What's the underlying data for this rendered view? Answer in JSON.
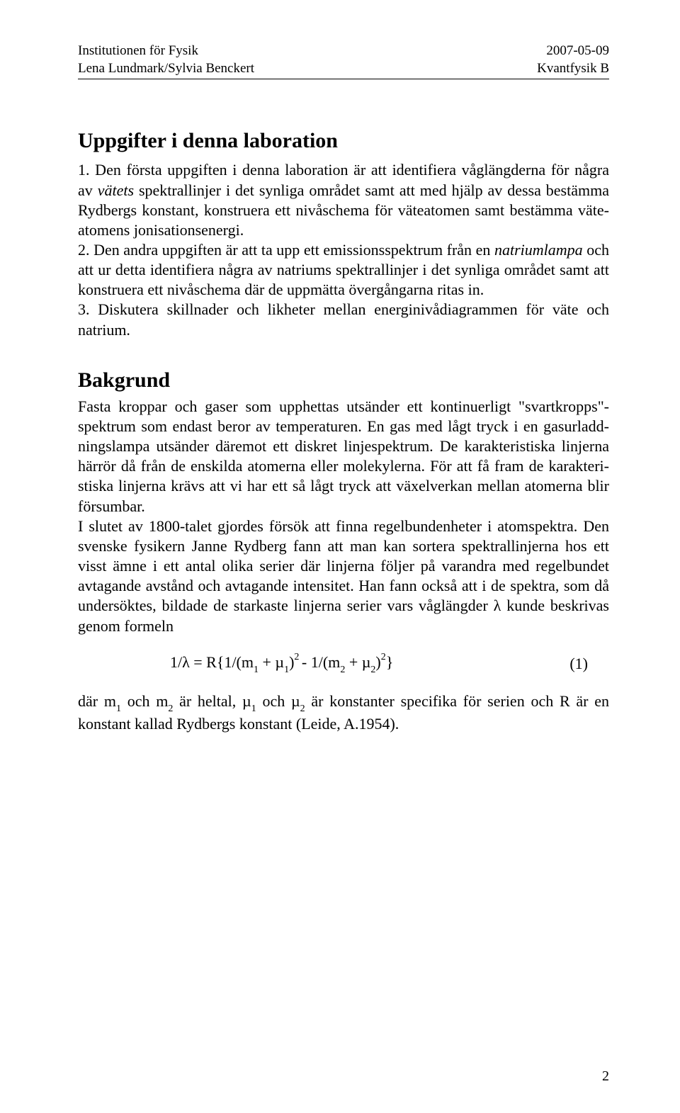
{
  "header": {
    "left_line1": "Institutionen för Fysik",
    "left_line2": "Lena Lundmark/Sylvia Benckert",
    "right_line1": "2007-05-09",
    "right_line2": "Kvantfysik B"
  },
  "section1": {
    "title": "Uppgifter i denna laboration",
    "p1_a": "1.       Den första uppgiften i denna laboration är att identifiera våglängderna för några av ",
    "p1_b": "vätets",
    "p1_c": " spektrallinjer i det synliga området samt att med hjälp av dessa bestämma Rydbergs konstant, konstruera ett nivåschema för väteatomen samt bestämma väte-atomens jonisationsenergi.",
    "p2_a": "2.       Den andra uppgiften är att ta upp ett emissionsspektrum från en ",
    "p2_b": "natriumlampa",
    "p2_c": " och att ur detta identifiera några av natriums spektrallinjer i det synliga området samt att konstruera ett nivåschema där de uppmätta övergångarna ritas in.",
    "p3": "3.              Diskutera skillnader och likheter mellan energinivådiagrammen för väte och natrium."
  },
  "section2": {
    "title": "Bakgrund",
    "p1": "Fasta kroppar och gaser som upphettas utsänder ett kontinuerligt \"svartkropps\"-spektrum som endast beror av temperaturen. En gas med lågt tryck i en gasurladd-ningslampa utsänder däremot ett diskret linjespektrum. De karakteristiska linjerna härrör då från de enskilda atomerna eller molekylerna. För att få fram de karakteri-stiska linjerna krävs att vi har ett så lågt tryck att växelverkan mellan atomerna blir försumbar.",
    "p2": "I slutet av 1800-talet gjordes försök att finna regelbundenheter i atomspektra. Den svenske fysikern Janne Rydberg fann att man kan sortera spektrallinjerna hos ett visst ämne i ett antal olika serier där linjerna följer på varandra med regelbundet avtagande avstånd och avtagande intensitet. Han fann också att i de spektra, som då undersöktes, bildade de starkaste linjerna serier vars våglängder λ kunde beskrivas genom formeln"
  },
  "formula": {
    "text_a": "1/λ = R",
    "text_b": "1/(m",
    "sub1": "1",
    "text_c": " + µ",
    "sub2": "1",
    "text_d": ")",
    "sup1": "2 ",
    "text_e": "- 1/(m",
    "sub3": "2",
    "text_f": " + µ",
    "sub4": "2",
    "text_g": ")",
    "sup2": "2",
    "eq_num": "(1)"
  },
  "after_formula": {
    "a": "där m",
    "s1": "1",
    "b": " och m",
    "s2": "2",
    "c": " är heltal, µ",
    "s3": "1",
    "d": " och µ",
    "s4": "2",
    "e": " är konstanter specifika för serien och R är en konstant kallad Rydbergs konstant  (Leide, A.1954)."
  },
  "page_number": "2"
}
